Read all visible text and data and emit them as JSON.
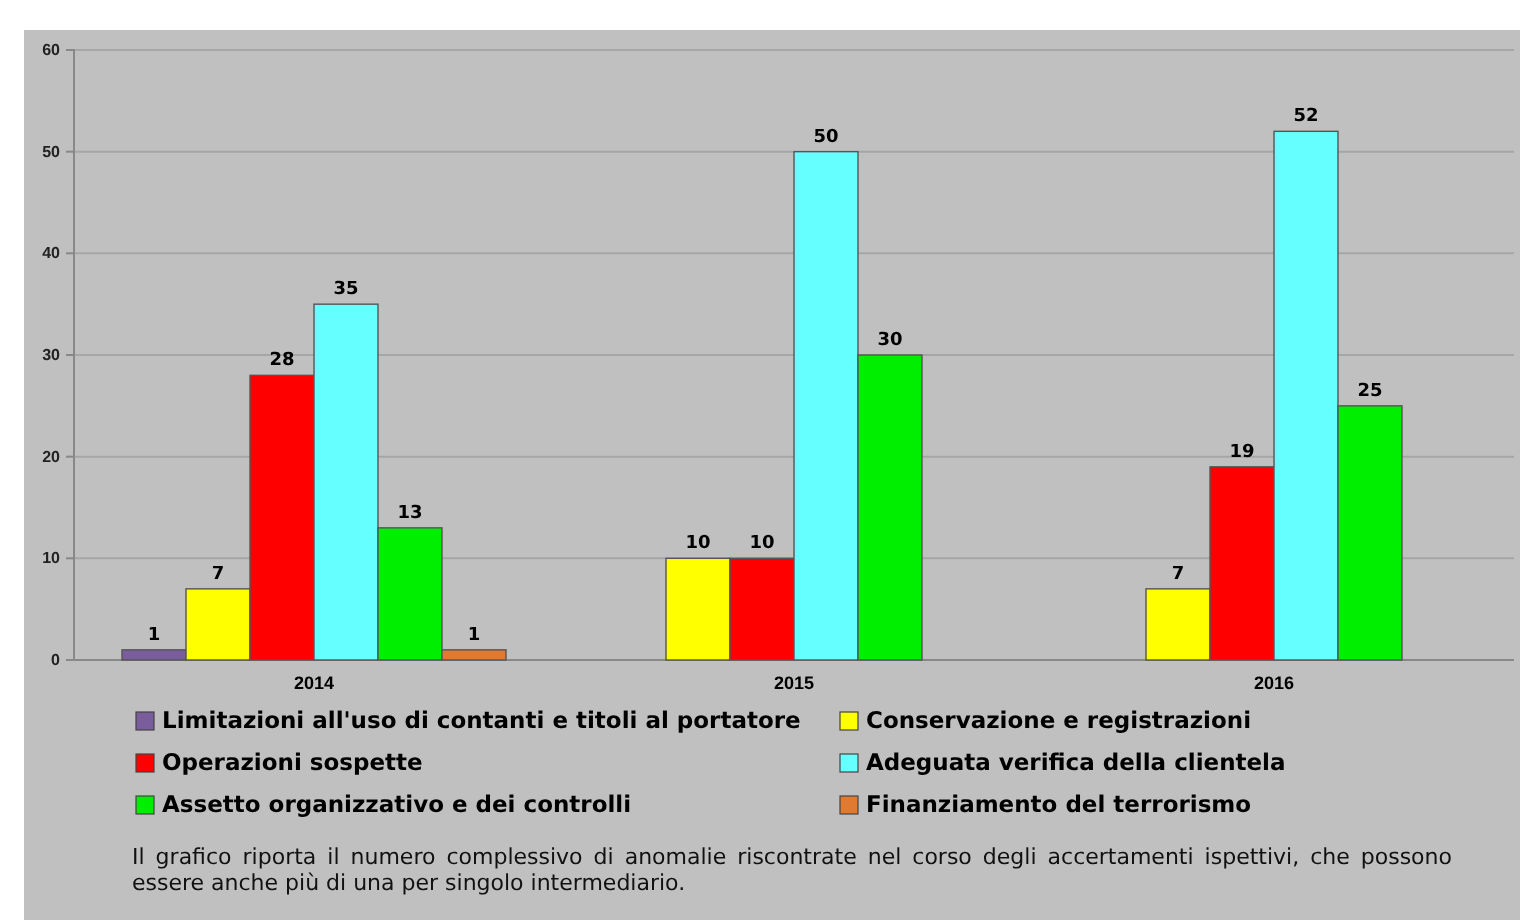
{
  "chart_data": {
    "type": "bar",
    "categories": [
      "2014",
      "2015",
      "2016"
    ],
    "series": [
      {
        "name": "Limitazioni all'uso di contanti e titoli al portatore",
        "color": "#7a5d9c",
        "values": [
          1,
          null,
          null
        ]
      },
      {
        "name": "Conservazione e registrazioni",
        "color": "#ffff00",
        "values": [
          7,
          10,
          7
        ]
      },
      {
        "name": "Operazioni sospette",
        "color": "#ff0000",
        "values": [
          28,
          10,
          19
        ]
      },
      {
        "name": "Adeguata verifica della clientela",
        "color": "#66ffff",
        "values": [
          35,
          50,
          52
        ]
      },
      {
        "name": "Assetto organizzativo e dei controlli",
        "color": "#00ee00",
        "values": [
          13,
          30,
          25
        ]
      },
      {
        "name": "Finanziamento del terrorismo",
        "color": "#e07a30",
        "values": [
          1,
          null,
          null
        ]
      }
    ],
    "ylim": [
      0,
      60
    ],
    "yticks": [
      0,
      10,
      20,
      30,
      40,
      50,
      60
    ],
    "grid": "y",
    "data_labels": true,
    "legend": "bottom",
    "annotations": [
      "Il grafico riporta il numero complessivo di anomalie riscontrate nel corso degli accertamenti ispettivi, che possono essere anche più di una per singolo intermediario."
    ]
  }
}
